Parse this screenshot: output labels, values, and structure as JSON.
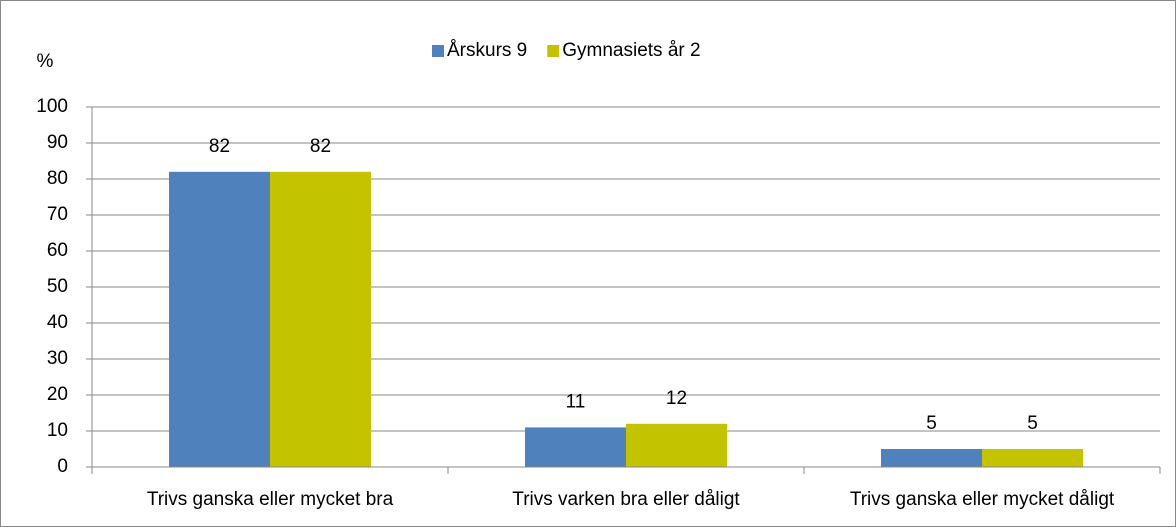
{
  "chart_data": {
    "type": "bar",
    "ylabel": "%",
    "categories": [
      "Trivs ganska eller mycket bra",
      "Trivs varken bra eller dåligt",
      "Trivs ganska eller mycket dåligt"
    ],
    "series": [
      {
        "name": "Årskurs 9",
        "color": "#4f81bd",
        "values": [
          82,
          11,
          5
        ]
      },
      {
        "name": "Gymnasiets år 2",
        "color": "#c3c300",
        "values": [
          82,
          12,
          5
        ]
      }
    ],
    "ylim": [
      0,
      100
    ],
    "yticks": [
      0,
      10,
      20,
      30,
      40,
      50,
      60,
      70,
      80,
      90,
      100
    ],
    "grid": true,
    "legend": "top"
  }
}
